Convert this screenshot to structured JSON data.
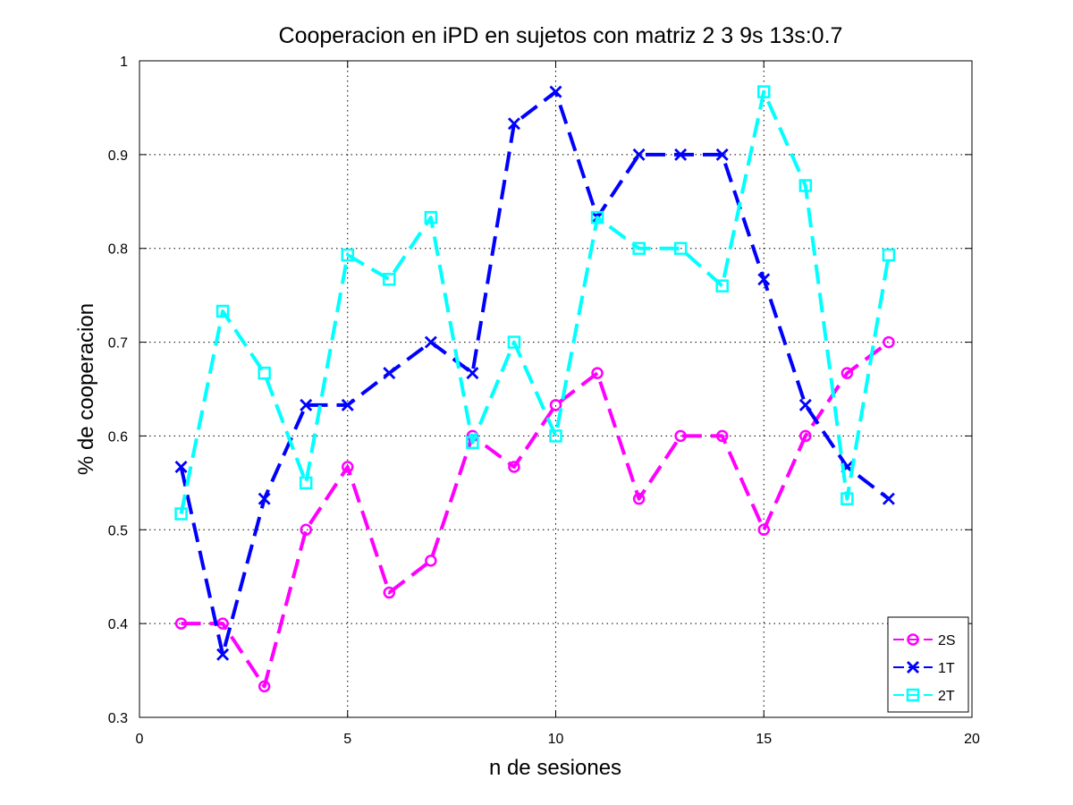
{
  "chart_data": {
    "type": "line",
    "title": "Cooperacion en iPD en sujetos con matriz 2 3 9s 13s:0.7",
    "xlabel": "n de sesiones",
    "ylabel": "% de cooperacion",
    "xlim": [
      0,
      20
    ],
    "ylim": [
      0.3,
      1
    ],
    "xticks": [
      0,
      5,
      10,
      15,
      20
    ],
    "yticks": [
      0.3,
      0.4,
      0.5,
      0.6,
      0.7,
      0.8,
      0.9,
      1
    ],
    "x_tick_labels": [
      "0",
      "5",
      "10",
      "15",
      "20"
    ],
    "y_tick_labels": [
      "0.3",
      "0.4",
      "0.5",
      "0.6",
      "0.7",
      "0.8",
      "0.9",
      "1"
    ],
    "grid": true,
    "legend_position": "bottom-right",
    "x": [
      1,
      2,
      3,
      4,
      5,
      6,
      7,
      8,
      9,
      10,
      11,
      12,
      13,
      14,
      15,
      16,
      17,
      18
    ],
    "series": [
      {
        "name": "2S",
        "color": "#ff00ff",
        "marker": "circle",
        "values": [
          0.4,
          0.4,
          0.333,
          0.5,
          0.567,
          0.433,
          0.467,
          0.6,
          0.567,
          0.633,
          0.667,
          0.533,
          0.6,
          0.6,
          0.5,
          0.6,
          0.667,
          0.7
        ]
      },
      {
        "name": "1T",
        "color": "#0000ff",
        "marker": "x",
        "values": [
          0.567,
          0.367,
          0.533,
          0.633,
          0.633,
          0.667,
          0.7,
          0.667,
          0.933,
          0.967,
          0.833,
          0.9,
          0.9,
          0.9,
          0.767,
          0.633,
          0.567,
          0.533
        ]
      },
      {
        "name": "2T",
        "color": "#00ffff",
        "marker": "square",
        "values": [
          0.517,
          0.733,
          0.667,
          0.55,
          0.793,
          0.767,
          0.833,
          0.593,
          0.7,
          0.6,
          0.833,
          0.8,
          0.8,
          0.76,
          0.967,
          0.867,
          0.533,
          0.793
        ]
      }
    ]
  }
}
